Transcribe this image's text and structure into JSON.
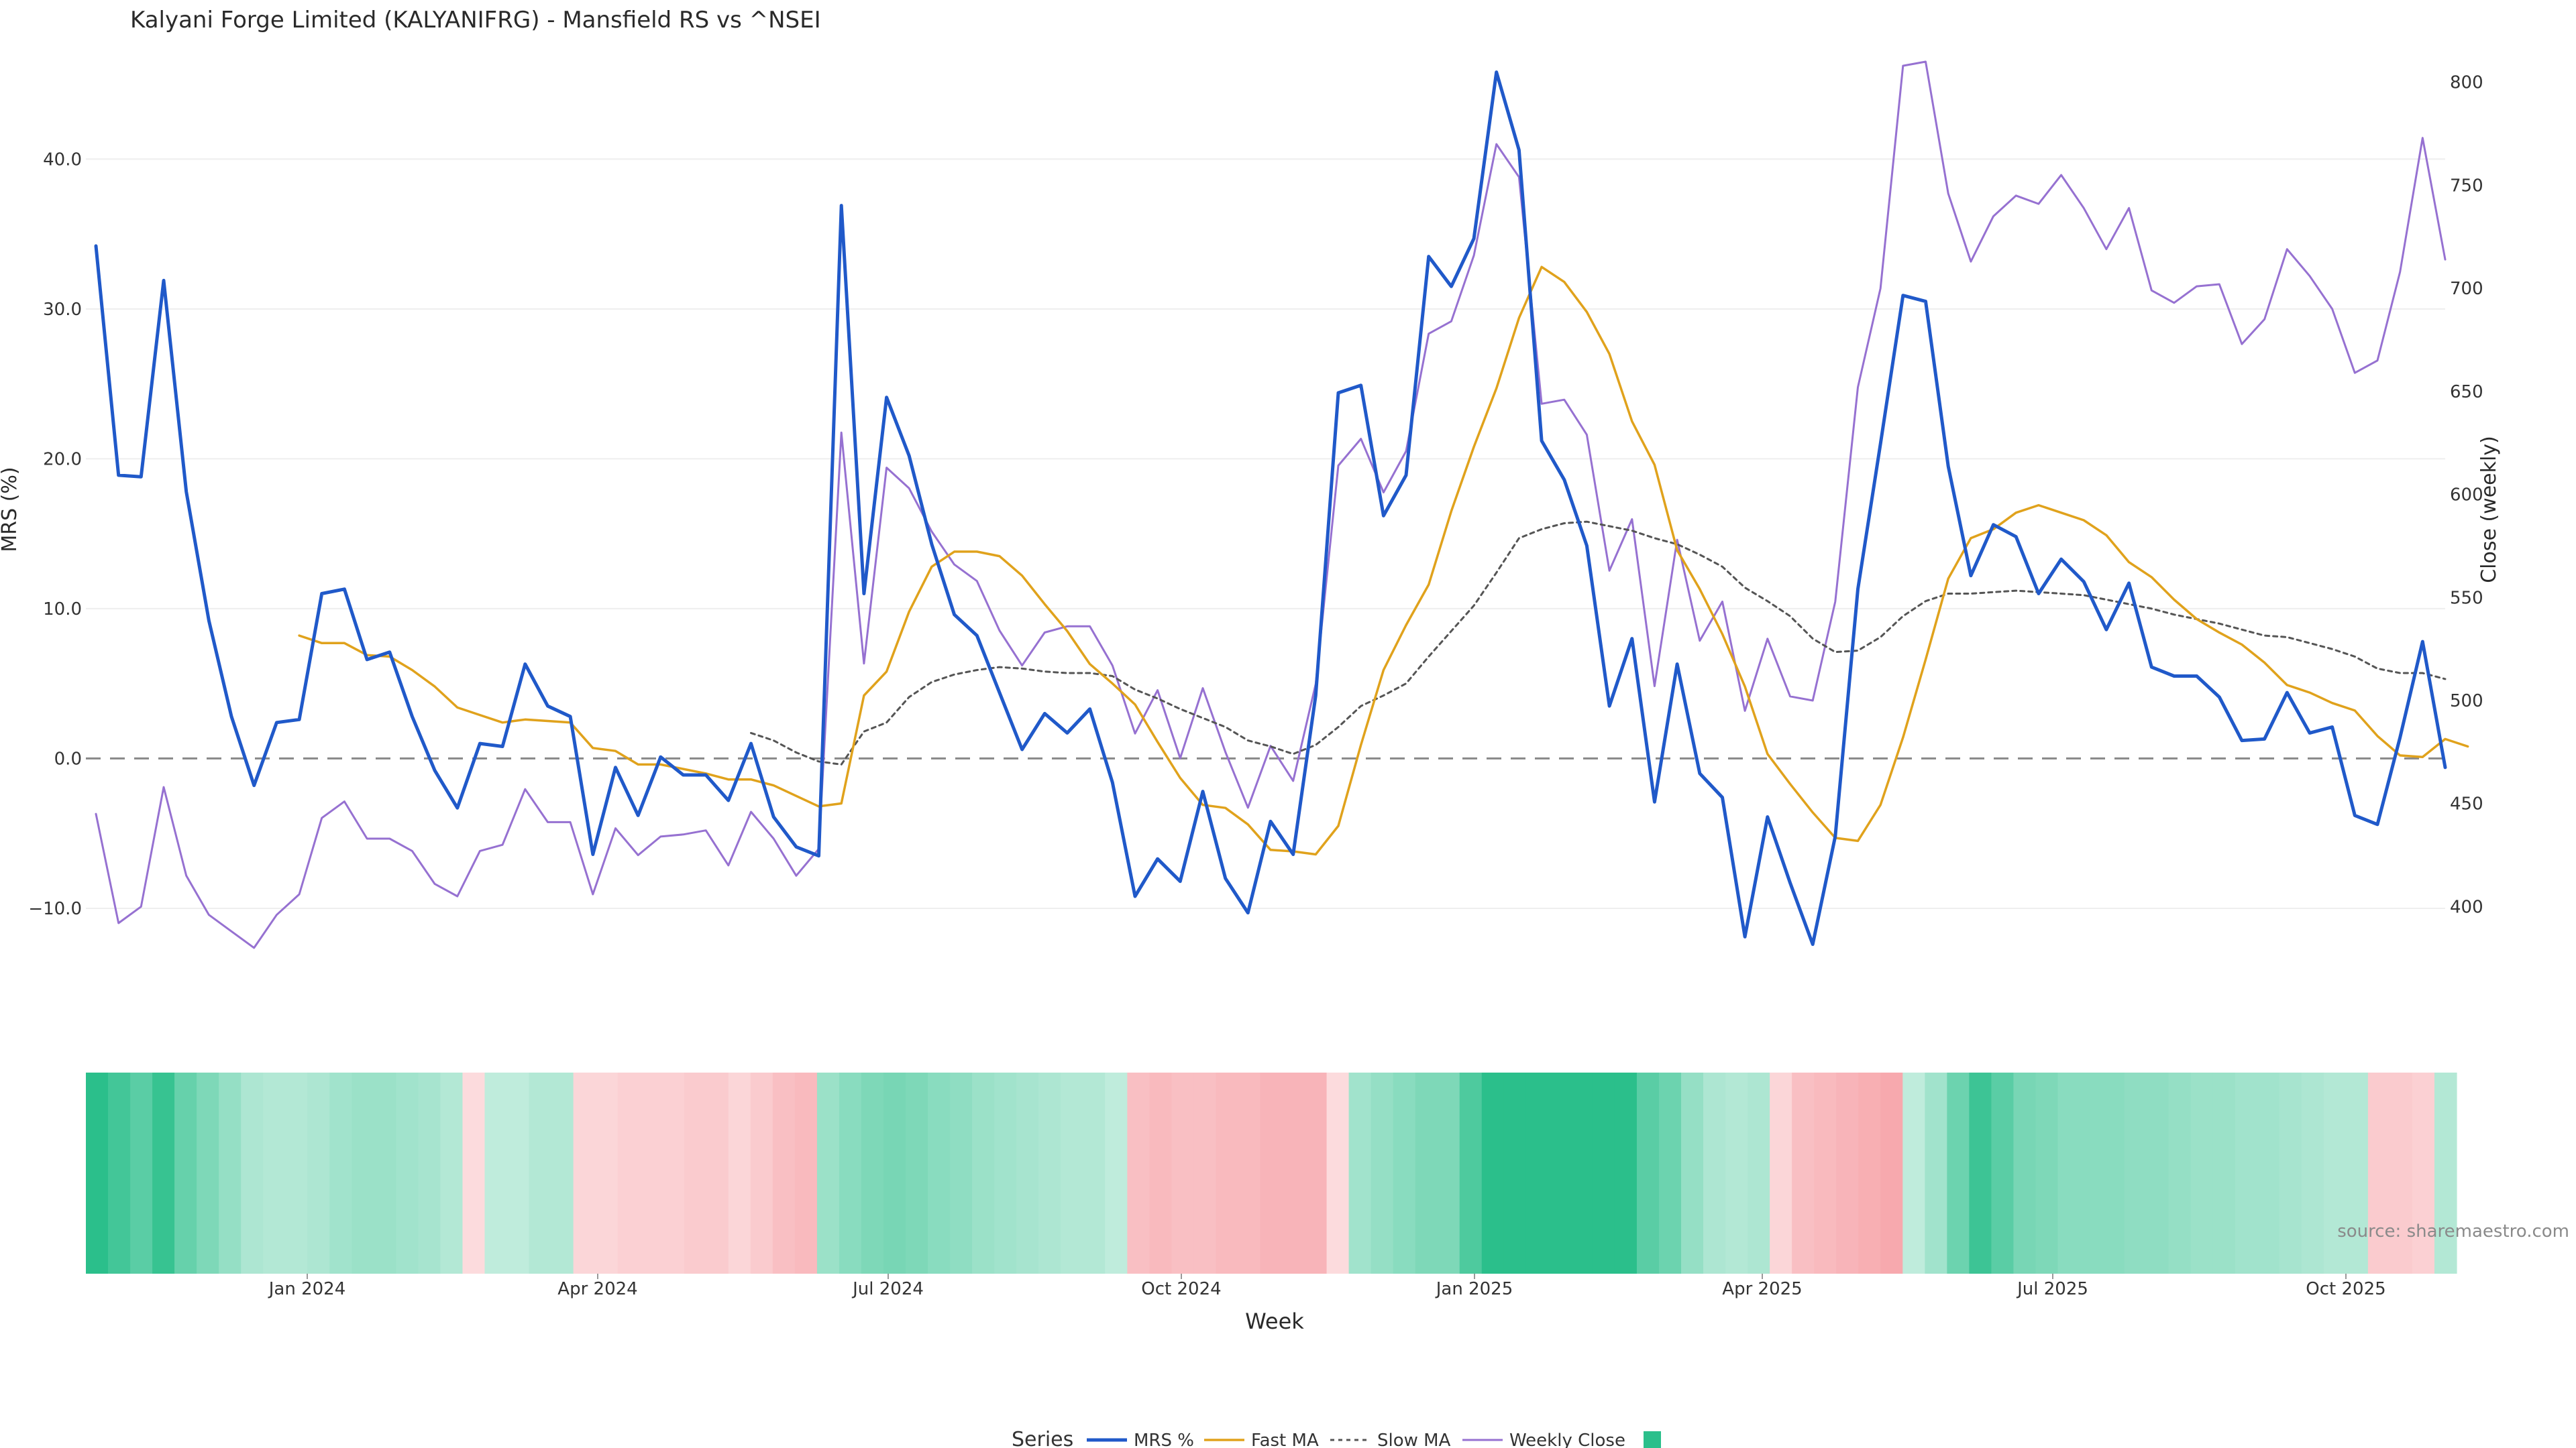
{
  "chart_data": {
    "type": "line",
    "title": "Kalyani Forge Limited (KALYANIFRG) - Mansfield RS vs ^NSEI",
    "xlabel": "Week",
    "ylabel": "MRS (%)",
    "y2label": "Close (weekly)",
    "source": "source: sharemaestro.com",
    "ylim": [
      -14.7,
      46.5
    ],
    "y2lim": [
      365,
      810
    ],
    "yticks": [
      "40.0",
      "30.0",
      "20.0",
      "10.0",
      "0.0",
      "−10.0"
    ],
    "y2ticks": [
      "800",
      "750",
      "700",
      "650",
      "600",
      "550",
      "500",
      "450",
      "400"
    ],
    "xticks": [
      "Jan 2024",
      "Apr 2024",
      "Jul 2024",
      "Oct 2024",
      "Jan 2025",
      "Apr 2025",
      "Jul 2025",
      "Oct 2025"
    ],
    "legend_title": "Series",
    "legend_placement": "bottom-center",
    "grid": true,
    "colors": {
      "mrs": "#2059c9",
      "fast": "#e0a21c",
      "slow": "#555555",
      "close": "#9671d1",
      "heat_pos": "#2bbf8b",
      "heat_neg": "#f7a9ae"
    },
    "series": [
      {
        "name": "MRS %",
        "values": [
          34.2,
          18.9,
          18.8,
          31.9,
          17.8,
          9.2,
          2.8,
          -1.8,
          2.4,
          2.6,
          11.0,
          11.3,
          6.6,
          7.1,
          2.8,
          -0.8,
          -3.3,
          1.0,
          0.8,
          6.3,
          3.5,
          2.8,
          -6.4,
          -0.6,
          -3.8,
          0.1,
          -1.1,
          -1.1,
          -2.8,
          1.0,
          -3.9,
          -5.9,
          -6.5,
          36.9,
          11.0,
          24.1,
          20.2,
          14.3,
          9.6,
          8.2,
          4.4,
          0.6,
          3.0,
          1.7,
          3.3,
          -1.6,
          -9.2,
          -6.7,
          -8.2,
          -2.2,
          -8.0,
          -10.3,
          -4.2,
          -6.4,
          4.2,
          24.4,
          24.9,
          16.2,
          18.9,
          33.5,
          31.5,
          34.7,
          45.8,
          40.6,
          21.2,
          18.6,
          14.2,
          3.5,
          8.0,
          -2.9,
          6.3,
          -1.0,
          -2.6,
          -11.9,
          -3.9,
          -8.3,
          -12.4,
          -5.2,
          11.3,
          21.0,
          30.9,
          30.5,
          19.5,
          12.2,
          15.6,
          14.8,
          11.0,
          13.3,
          11.8,
          8.6,
          11.7,
          6.1,
          5.5,
          5.5,
          4.1,
          1.2,
          1.3,
          4.4,
          1.7,
          2.1,
          -3.8,
          -4.4,
          1.4,
          7.8,
          -0.6
        ]
      },
      {
        "name": "Fast MA",
        "values": [
          null,
          null,
          null,
          null,
          null,
          null,
          null,
          null,
          null,
          8.2,
          7.7,
          7.7,
          6.9,
          6.8,
          5.9,
          4.8,
          3.4,
          2.9,
          2.4,
          2.6,
          2.5,
          2.4,
          0.7,
          0.5,
          -0.4,
          -0.4,
          -0.7,
          -1.0,
          -1.4,
          -1.4,
          -1.8,
          -2.5,
          -3.2,
          -3.0,
          4.2,
          5.8,
          9.8,
          12.8,
          13.8,
          13.8,
          13.5,
          12.2,
          10.3,
          8.5,
          6.3,
          5.0,
          3.6,
          1.1,
          -1.3,
          -3.1,
          -3.3,
          -4.4,
          -6.1,
          -6.2,
          -6.4,
          -4.5,
          0.9,
          5.9,
          8.9,
          11.6,
          16.5,
          20.8,
          24.7,
          29.4,
          32.8,
          31.8,
          29.8,
          27.0,
          22.5,
          19.6,
          13.9,
          11.3,
          8.3,
          4.8,
          0.3,
          -1.7,
          -3.6,
          -5.3,
          -5.5,
          -3.1,
          1.4,
          6.6,
          12.0,
          14.7,
          15.3,
          16.4,
          16.9,
          16.4,
          15.9,
          14.9,
          13.1,
          12.1,
          10.6,
          9.3,
          8.4,
          7.6,
          6.4,
          4.9,
          4.4,
          3.7,
          3.2,
          1.5,
          0.2,
          0.1,
          1.3,
          0.8
        ]
      },
      {
        "name": "Slow MA",
        "values": [
          null,
          null,
          null,
          null,
          null,
          null,
          null,
          null,
          null,
          null,
          null,
          null,
          null,
          null,
          null,
          null,
          null,
          null,
          null,
          null,
          null,
          null,
          null,
          null,
          null,
          null,
          null,
          null,
          null,
          1.7,
          1.2,
          0.4,
          -0.2,
          -0.4,
          1.8,
          2.4,
          4.1,
          5.1,
          5.6,
          5.9,
          6.1,
          6.0,
          5.8,
          5.7,
          5.7,
          5.5,
          4.6,
          4.0,
          3.3,
          2.7,
          2.1,
          1.2,
          0.8,
          0.3,
          0.9,
          2.1,
          3.5,
          4.2,
          5.0,
          6.8,
          8.5,
          10.2,
          12.4,
          14.7,
          15.3,
          15.7,
          15.8,
          15.5,
          15.2,
          14.7,
          14.3,
          13.6,
          12.8,
          11.4,
          10.5,
          9.5,
          8.0,
          7.1,
          7.2,
          8.1,
          9.5,
          10.5,
          11.0,
          11.0,
          11.1,
          11.2,
          11.1,
          11.0,
          10.9,
          10.6,
          10.3,
          10.0,
          9.6,
          9.3,
          9.0,
          8.6,
          8.2,
          8.1,
          7.7,
          7.3,
          6.8,
          6.0,
          5.7,
          5.7,
          5.3
        ]
      },
      {
        "name": "Weekly Close",
        "axis": "right",
        "values": [
          445,
          392,
          400,
          458,
          415,
          396,
          388,
          380,
          396,
          406,
          443,
          451,
          433,
          433,
          427,
          411,
          405,
          427,
          430,
          457,
          441,
          441,
          406,
          438,
          425,
          434,
          435,
          437,
          420,
          446,
          433,
          415,
          428,
          630,
          518,
          613,
          603,
          582,
          566,
          558,
          534,
          517,
          533,
          536,
          536,
          517,
          484,
          505,
          472,
          506,
          475,
          448,
          478,
          461,
          508,
          614,
          627,
          601,
          621,
          678,
          684,
          716,
          770,
          754,
          644,
          646,
          629,
          563,
          588,
          507,
          578,
          529,
          548,
          495,
          530,
          502,
          500,
          548,
          652,
          700,
          808,
          810,
          746,
          713,
          735,
          745,
          741,
          755,
          739,
          719,
          739,
          699,
          693,
          701,
          702,
          673,
          685,
          719,
          706,
          690,
          659,
          665,
          708,
          773,
          714
        ]
      }
    ],
    "heatmap_values": [
      28.0,
      24.0,
      20.0,
      26.0,
      18.0,
      14.0,
      10.0,
      6.0,
      5.0,
      5.0,
      6.0,
      8.0,
      9.0,
      9.0,
      8.0,
      7.0,
      5.0,
      -1.0,
      3.0,
      3.0,
      5.0,
      5.0,
      -2.0,
      -2.0,
      -3.0,
      -3.0,
      -3.0,
      -4.0,
      -4.0,
      -2.0,
      -4.0,
      -6.0,
      -7.0,
      9.0,
      12.0,
      14.0,
      15.0,
      14.0,
      12.0,
      11.0,
      9.0,
      8.0,
      7.0,
      6.0,
      5.0,
      5.0,
      3.0,
      -6.0,
      -7.0,
      -6.0,
      -6.0,
      -7.0,
      -7.0,
      -8.0,
      -8.0,
      -8.0,
      -1.0,
      8.0,
      10.0,
      12.0,
      14.0,
      14.0,
      22.0,
      28.0,
      30.0,
      30.0,
      30.0,
      30.0,
      30.0,
      30.0,
      20.0,
      17.0,
      10.0,
      6.0,
      5.0,
      6.0,
      -2.0,
      -6.0,
      -7.0,
      -8.0,
      -9.0,
      -10.0,
      3.0,
      8.0,
      17.0,
      25.0,
      20.0,
      15.0,
      14.0,
      12.0,
      12.0,
      12.0,
      11.0,
      11.0,
      10.0,
      9.0,
      9.0,
      8.0,
      8.0,
      7.0,
      6.0,
      5.0,
      5.0,
      -4.0,
      -4.0,
      -3.0,
      5.0
    ]
  }
}
